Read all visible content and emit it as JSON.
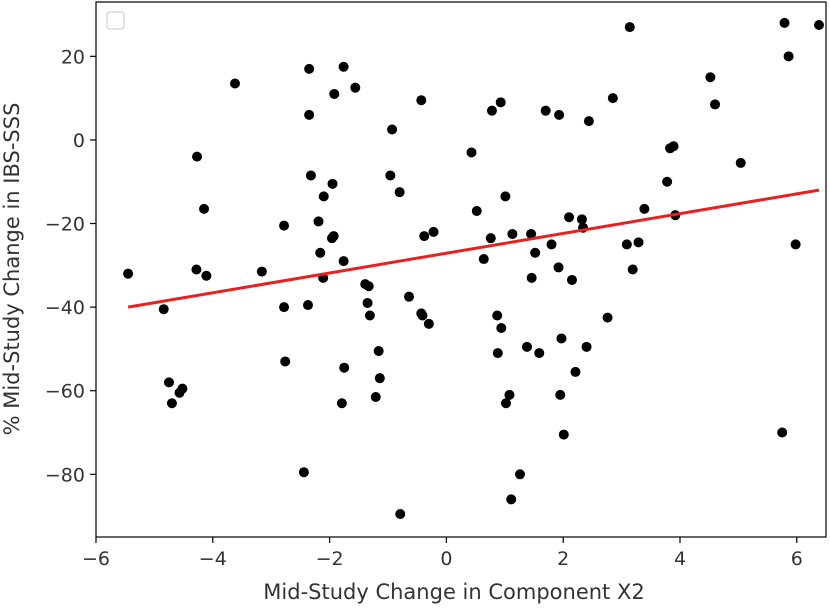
{
  "chart_data": {
    "type": "scatter",
    "xlabel": "Mid-Study Change in Component X2",
    "ylabel": "% Mid-Study Change in IBS-SSS",
    "xlim": [
      -6,
      6.5
    ],
    "ylim": [
      -95,
      33
    ],
    "xticks": [
      -6,
      -4,
      -2,
      0,
      2,
      4,
      6
    ],
    "yticks": [
      -80,
      -60,
      -40,
      -20,
      0,
      20
    ],
    "xtick_labels": [
      "−6",
      "−4",
      "−2",
      "0",
      "2",
      "4",
      "6"
    ],
    "ytick_labels": [
      "−80",
      "−60",
      "−40",
      "−20",
      "0",
      "20"
    ],
    "grid": false,
    "legend": {
      "placement": "top-left",
      "entries": []
    },
    "marker_color": "#000000",
    "line_color": "#e8201f",
    "trend_line": {
      "x": [
        -5.45,
        6.38
      ],
      "y": [
        -40.0,
        -12.0
      ]
    },
    "points": [
      [
        -5.45,
        -32
      ],
      [
        -4.84,
        -40.5
      ],
      [
        -4.75,
        -58
      ],
      [
        -4.7,
        -63
      ],
      [
        -4.57,
        -60.5
      ],
      [
        -4.52,
        -59.5
      ],
      [
        -4.28,
        -31
      ],
      [
        -4.27,
        -4
      ],
      [
        -4.15,
        -16.5
      ],
      [
        -4.11,
        -32.5
      ],
      [
        -3.62,
        13.5
      ],
      [
        -3.16,
        -31.5
      ],
      [
        -2.78,
        -20.5
      ],
      [
        -2.78,
        -40
      ],
      [
        -2.76,
        -53
      ],
      [
        -2.44,
        -79.5
      ],
      [
        -2.37,
        -39.5
      ],
      [
        -2.35,
        17
      ],
      [
        -2.35,
        6
      ],
      [
        -2.32,
        -8.5
      ],
      [
        -2.19,
        -19.5
      ],
      [
        -2.16,
        -27
      ],
      [
        -2.11,
        -33
      ],
      [
        -2.1,
        -13.5
      ],
      [
        -1.96,
        -23.5
      ],
      [
        -1.95,
        -10.5
      ],
      [
        -1.93,
        -23
      ],
      [
        -1.92,
        11
      ],
      [
        -1.76,
        -29
      ],
      [
        -1.76,
        17.5
      ],
      [
        -1.75,
        -54.5
      ],
      [
        -1.79,
        -63
      ],
      [
        -1.56,
        12.5
      ],
      [
        -1.39,
        -34.5
      ],
      [
        -1.33,
        -35
      ],
      [
        -1.35,
        -39
      ],
      [
        -1.31,
        -42
      ],
      [
        -1.21,
        -61.5
      ],
      [
        -1.16,
        -50.5
      ],
      [
        -1.14,
        -57
      ],
      [
        -0.96,
        -8.5
      ],
      [
        -0.93,
        2.5
      ],
      [
        -0.8,
        -12.5
      ],
      [
        -0.79,
        -89.5
      ],
      [
        -0.64,
        -37.5
      ],
      [
        -0.43,
        9.5
      ],
      [
        -0.43,
        -41.5
      ],
      [
        -0.41,
        -42
      ],
      [
        -0.38,
        -23
      ],
      [
        -0.3,
        -44
      ],
      [
        -0.22,
        -22
      ],
      [
        0.43,
        -3
      ],
      [
        0.52,
        -17
      ],
      [
        0.64,
        -28.5
      ],
      [
        0.76,
        -23.5
      ],
      [
        0.78,
        7
      ],
      [
        0.87,
        -42
      ],
      [
        0.88,
        -51
      ],
      [
        0.93,
        9
      ],
      [
        0.94,
        -45
      ],
      [
        1.01,
        -13.5
      ],
      [
        1.02,
        -63
      ],
      [
        1.08,
        -61
      ],
      [
        1.11,
        -86
      ],
      [
        1.13,
        -22.5
      ],
      [
        1.26,
        -80
      ],
      [
        1.38,
        -49.5
      ],
      [
        1.45,
        -22.5
      ],
      [
        1.46,
        -33
      ],
      [
        1.52,
        -27
      ],
      [
        1.59,
        -51
      ],
      [
        1.7,
        7
      ],
      [
        1.8,
        -25
      ],
      [
        1.92,
        -30.5
      ],
      [
        1.93,
        6
      ],
      [
        1.95,
        -61
      ],
      [
        1.97,
        -47.5
      ],
      [
        2.01,
        -70.5
      ],
      [
        2.1,
        -18.5
      ],
      [
        2.15,
        -33.5
      ],
      [
        2.21,
        -55.5
      ],
      [
        2.32,
        -19
      ],
      [
        2.34,
        -21
      ],
      [
        2.4,
        -49.5
      ],
      [
        2.44,
        4.5
      ],
      [
        2.76,
        -42.5
      ],
      [
        2.85,
        10
      ],
      [
        3.09,
        -25
      ],
      [
        3.14,
        27
      ],
      [
        3.19,
        -31
      ],
      [
        3.29,
        -24.5
      ],
      [
        3.39,
        -16.5
      ],
      [
        3.78,
        -10
      ],
      [
        3.83,
        -2
      ],
      [
        3.89,
        -1.5
      ],
      [
        3.92,
        -18
      ],
      [
        4.52,
        15
      ],
      [
        4.6,
        8.5
      ],
      [
        5.04,
        -5.5
      ],
      [
        5.75,
        -70
      ],
      [
        5.79,
        28
      ],
      [
        5.86,
        20
      ],
      [
        5.98,
        -25
      ],
      [
        6.38,
        27.5
      ]
    ]
  }
}
